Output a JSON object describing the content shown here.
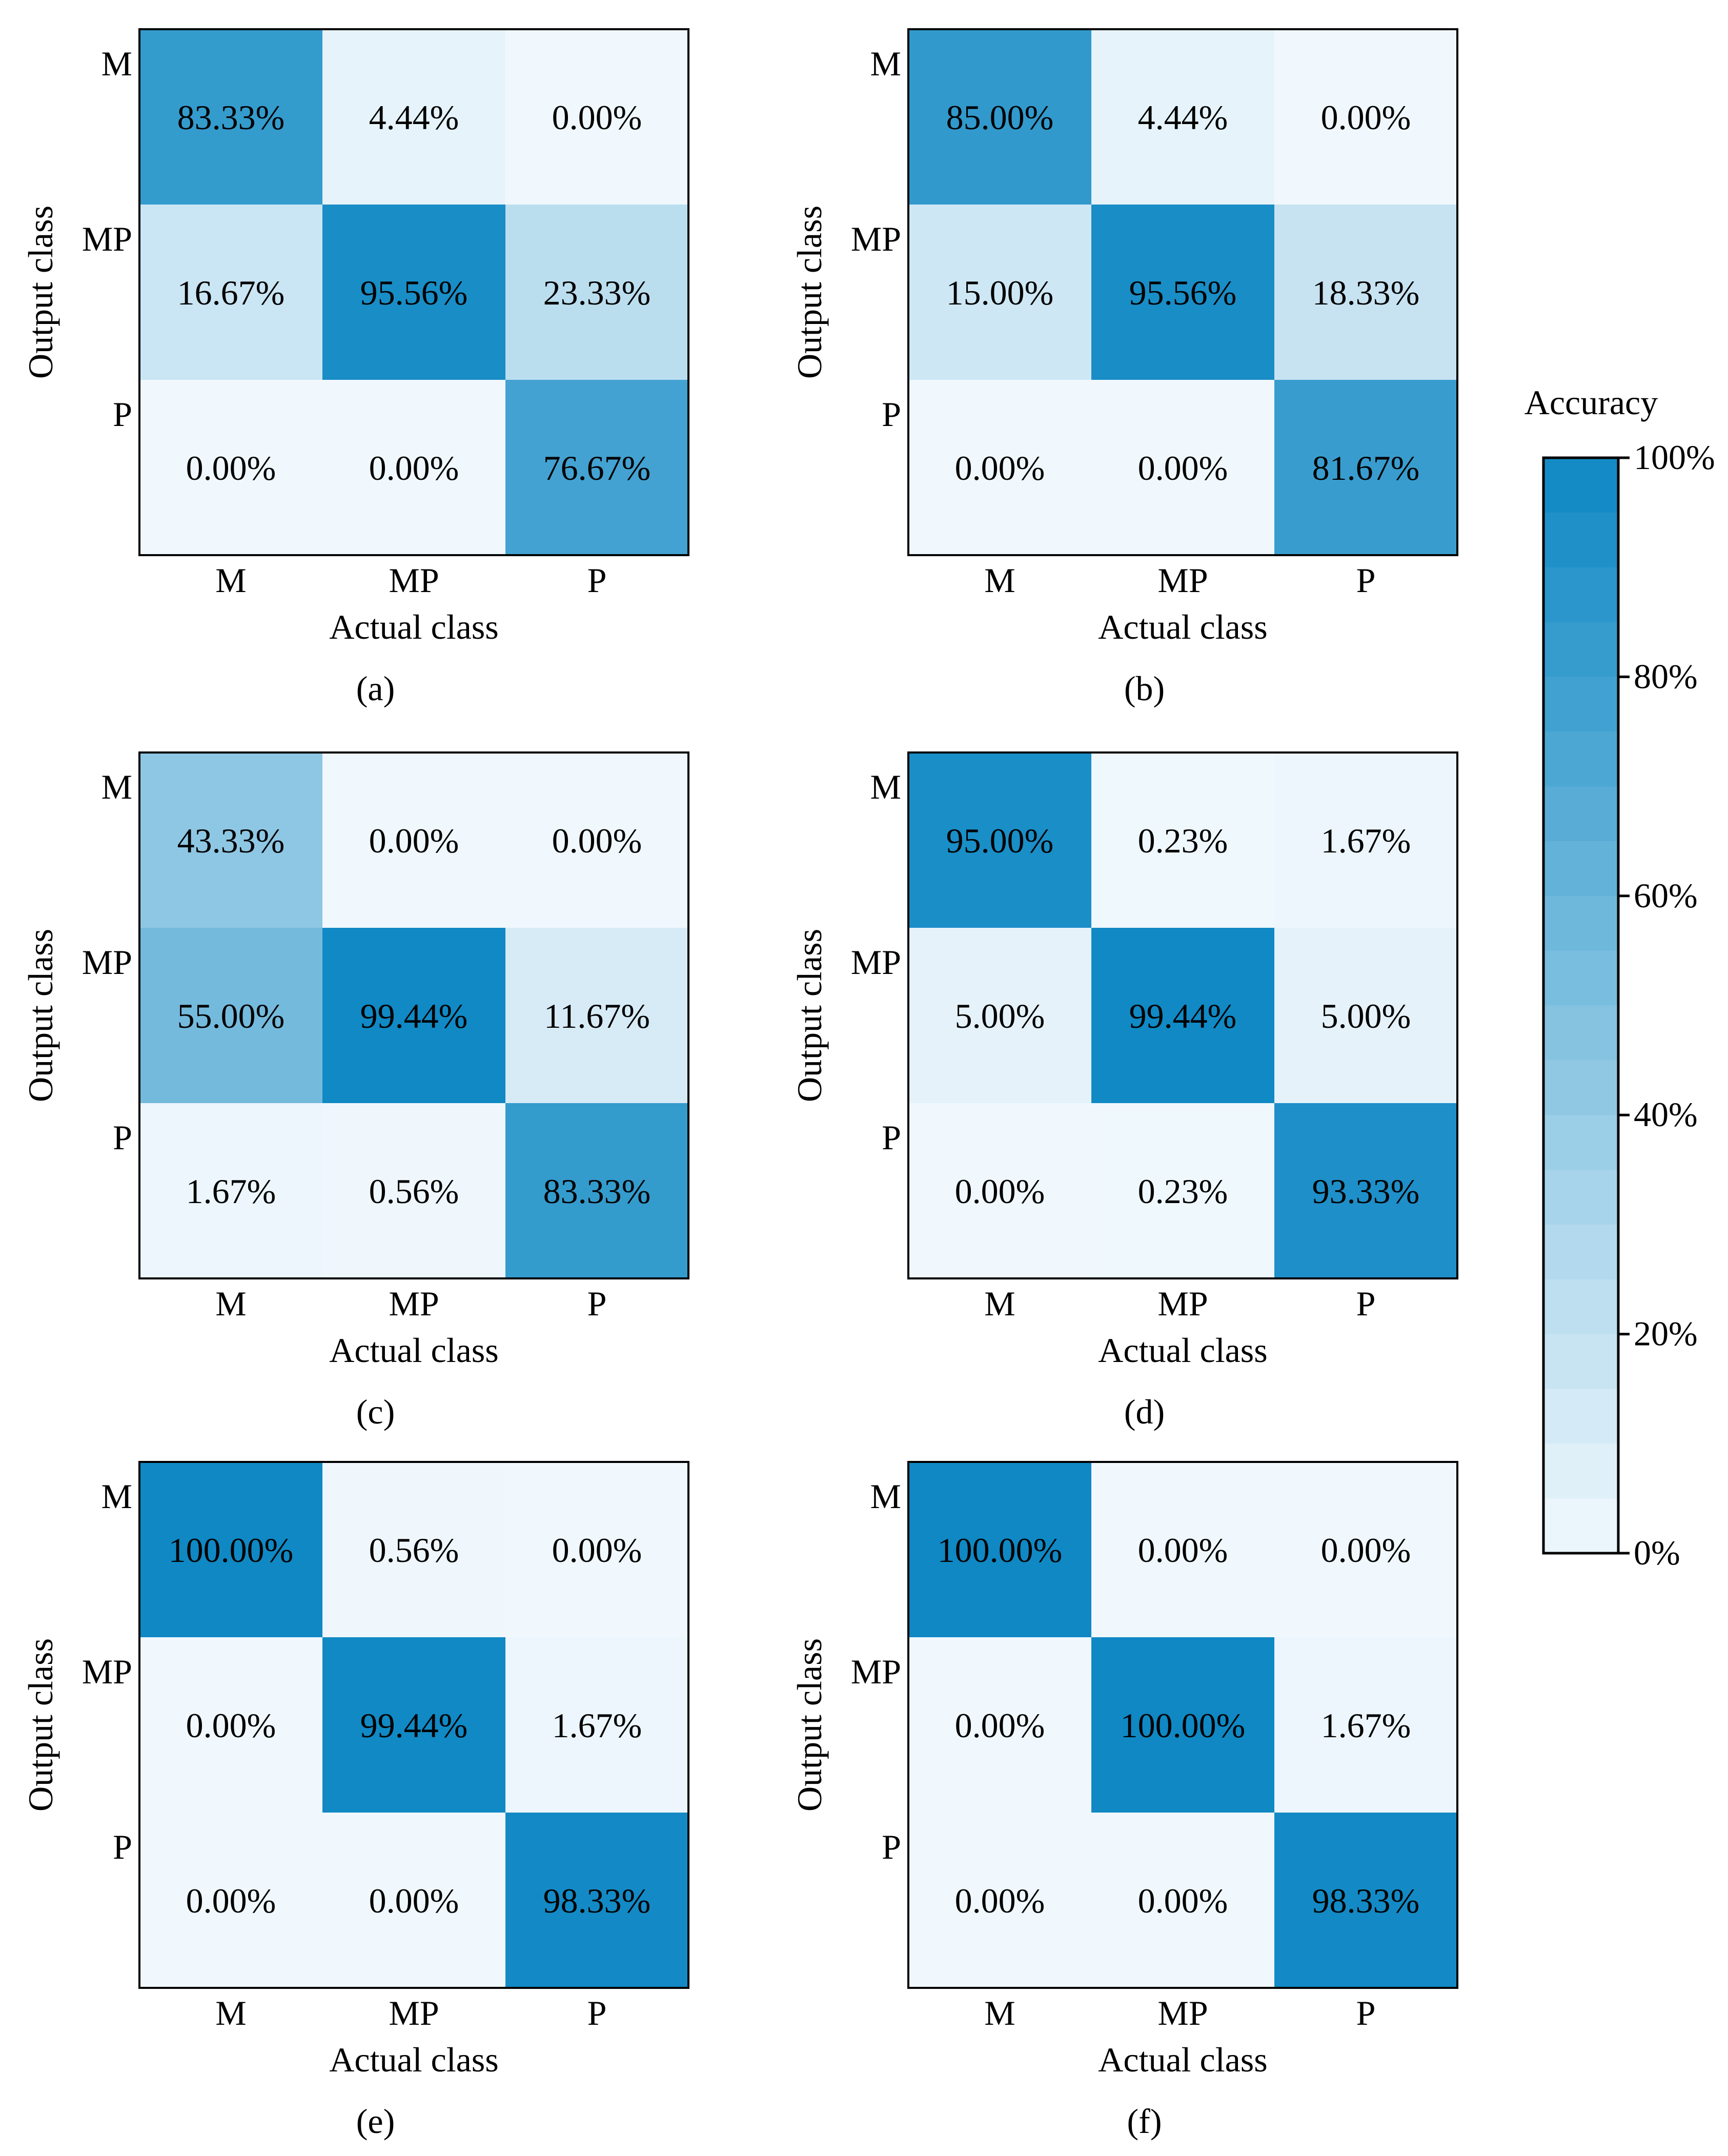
{
  "chart_data": [
    {
      "type": "heatmap",
      "caption": "(a)",
      "xlabel": "Actual class",
      "ylabel": "Output class",
      "x_categories": [
        "M",
        "MP",
        "P"
      ],
      "y_categories": [
        "M",
        "MP",
        "P"
      ],
      "values": [
        [
          83.33,
          4.44,
          0.0
        ],
        [
          16.67,
          95.56,
          23.33
        ],
        [
          0.0,
          0.0,
          76.67
        ]
      ],
      "labels": [
        [
          "83.33%",
          "4.44%",
          "0.00%"
        ],
        [
          "16.67%",
          "95.56%",
          "23.33%"
        ],
        [
          "0.00%",
          "0.00%",
          "76.67%"
        ]
      ]
    },
    {
      "type": "heatmap",
      "caption": "(b)",
      "xlabel": "Actual class",
      "ylabel": "Output class",
      "x_categories": [
        "M",
        "MP",
        "P"
      ],
      "y_categories": [
        "M",
        "MP",
        "P"
      ],
      "values": [
        [
          85.0,
          4.44,
          0.0
        ],
        [
          15.0,
          95.56,
          18.33
        ],
        [
          0.0,
          0.0,
          81.67
        ]
      ],
      "labels": [
        [
          "85.00%",
          "4.44%",
          "0.00%"
        ],
        [
          "15.00%",
          "95.56%",
          "18.33%"
        ],
        [
          "0.00%",
          "0.00%",
          "81.67%"
        ]
      ]
    },
    {
      "type": "heatmap",
      "caption": "(c)",
      "xlabel": "Actual class",
      "ylabel": "Output class",
      "x_categories": [
        "M",
        "MP",
        "P"
      ],
      "y_categories": [
        "M",
        "MP",
        "P"
      ],
      "values": [
        [
          43.33,
          0.0,
          0.0
        ],
        [
          55.0,
          99.44,
          11.67
        ],
        [
          1.67,
          0.56,
          83.33
        ]
      ],
      "labels": [
        [
          "43.33%",
          "0.00%",
          "0.00%"
        ],
        [
          "55.00%",
          "99.44%",
          "11.67%"
        ],
        [
          "1.67%",
          "0.56%",
          "83.33%"
        ]
      ]
    },
    {
      "type": "heatmap",
      "caption": "(d)",
      "xlabel": "Actual class",
      "ylabel": "Output class",
      "x_categories": [
        "M",
        "MP",
        "P"
      ],
      "y_categories": [
        "M",
        "MP",
        "P"
      ],
      "values": [
        [
          95.0,
          0.23,
          1.67
        ],
        [
          5.0,
          99.44,
          5.0
        ],
        [
          0.0,
          0.23,
          93.33
        ]
      ],
      "labels": [
        [
          "95.00%",
          "0.23%",
          "1.67%"
        ],
        [
          "5.00%",
          "99.44%",
          "5.00%"
        ],
        [
          "0.00%",
          "0.23%",
          "93.33%"
        ]
      ]
    },
    {
      "type": "heatmap",
      "caption": "(e)",
      "xlabel": "Actual class",
      "ylabel": "Output class",
      "x_categories": [
        "M",
        "MP",
        "P"
      ],
      "y_categories": [
        "M",
        "MP",
        "P"
      ],
      "values": [
        [
          100.0,
          0.56,
          0.0
        ],
        [
          0.0,
          99.44,
          1.67
        ],
        [
          0.0,
          0.0,
          98.33
        ]
      ],
      "labels": [
        [
          "100.00%",
          "0.56%",
          "0.00%"
        ],
        [
          "0.00%",
          "99.44%",
          "1.67%"
        ],
        [
          "0.00%",
          "0.00%",
          "98.33%"
        ]
      ]
    },
    {
      "type": "heatmap",
      "caption": "(f)",
      "xlabel": "Actual class",
      "ylabel": "Output class",
      "x_categories": [
        "M",
        "MP",
        "P"
      ],
      "y_categories": [
        "M",
        "MP",
        "P"
      ],
      "values": [
        [
          100.0,
          0.0,
          0.0
        ],
        [
          0.0,
          100.0,
          1.67
        ],
        [
          0.0,
          0.0,
          98.33
        ]
      ],
      "labels": [
        [
          "100.00%",
          "0.00%",
          "0.00%"
        ],
        [
          "0.00%",
          "100.00%",
          "1.67%"
        ],
        [
          "0.00%",
          "0.00%",
          "98.33%"
        ]
      ]
    }
  ],
  "colorbar": {
    "title": "Accuracy",
    "range": [
      0,
      100
    ],
    "ticks": [
      {
        "value": 100,
        "label": "100%"
      },
      {
        "value": 80,
        "label": "80%"
      },
      {
        "value": 60,
        "label": "60%"
      },
      {
        "value": 40,
        "label": "40%"
      },
      {
        "value": 20,
        "label": "20%"
      },
      {
        "value": 0,
        "label": "0%"
      }
    ],
    "color_low": "#f0f8fd",
    "color_mid": "#7fc0e0",
    "color_high": "#0f88c4",
    "levels": 20
  }
}
